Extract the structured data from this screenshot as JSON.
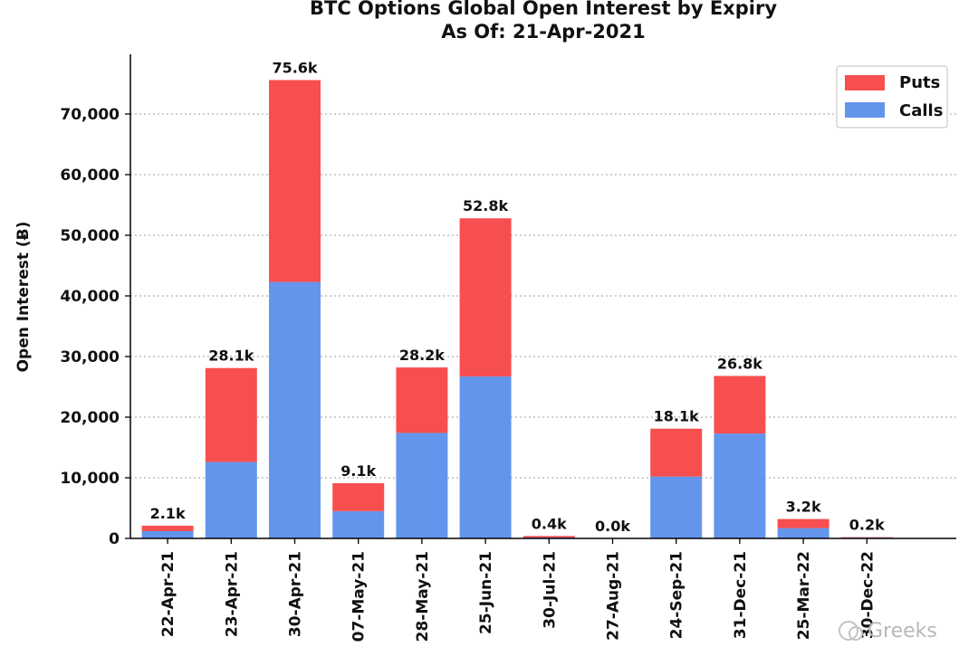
{
  "chart_data": {
    "type": "bar",
    "stacked": true,
    "title": "BTC Options Global Open Interest by Expiry",
    "subtitle": "As Of: 21-Apr-2021",
    "xlabel": "",
    "ylabel": "Open Interest (Ƀ)",
    "ylim": [
      0,
      80000
    ],
    "yticks": [
      0,
      10000,
      20000,
      30000,
      40000,
      50000,
      60000,
      70000
    ],
    "ytick_labels": [
      "0",
      "10,000",
      "20,000",
      "30,000",
      "40,000",
      "50,000",
      "60,000",
      "70,000"
    ],
    "grid": "horizontal dotted",
    "legend_position": "top-right",
    "categories": [
      "22-Apr-21",
      "23-Apr-21",
      "30-Apr-21",
      "07-May-21",
      "28-May-21",
      "25-Jun-21",
      "30-Jul-21",
      "27-Aug-21",
      "24-Sep-21",
      "31-Dec-21",
      "25-Mar-22",
      "30-Dec-22"
    ],
    "series": [
      {
        "name": "Calls",
        "color": "#6495ed",
        "values": [
          1200,
          12600,
          42300,
          4500,
          17400,
          26700,
          150,
          20,
          10200,
          17300,
          1700,
          120
        ]
      },
      {
        "name": "Puts",
        "color": "#f74f4f",
        "values": [
          900,
          15500,
          33300,
          4600,
          10800,
          26100,
          250,
          10,
          7900,
          9500,
          1500,
          80
        ]
      }
    ],
    "legend_order": [
      "Puts",
      "Calls"
    ],
    "totals_labels": [
      "2.1k",
      "28.1k",
      "75.6k",
      "9.1k",
      "28.2k",
      "52.8k",
      "0.4k",
      "0.0k",
      "18.1k",
      "26.8k",
      "3.2k",
      "0.2k"
    ]
  },
  "watermark": {
    "text": "Greeks"
  }
}
